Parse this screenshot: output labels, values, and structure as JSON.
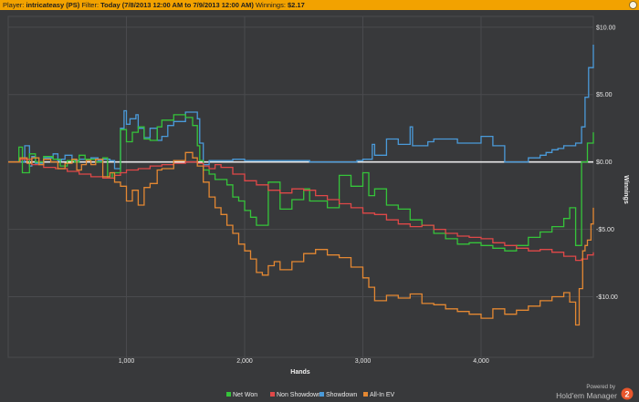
{
  "header": {
    "player_label": "Player:",
    "player_value": "intricateasy (PS)",
    "filter_label": "Filter:",
    "filter_value": "Today (7/8/2013 12:00 AM to 7/9/2013 12:00 AM)",
    "winnings_label": "Winnings:",
    "winnings_value": "$2.17"
  },
  "branding": {
    "line1": "Powered by",
    "line2": "Hold'em Manager",
    "badge": "2"
  },
  "colors": {
    "background": "#38393b",
    "grid": "#4a4b4e",
    "zero_line": "#e8e8e8",
    "header_bg": "#f2a200"
  },
  "chart_data": {
    "type": "line",
    "xlabel": "Hands",
    "ylabel": "Winnings",
    "xlim": [
      0,
      4950
    ],
    "ylim": [
      -14.5,
      10.8
    ],
    "x_ticks": [
      1000,
      2000,
      3000,
      4000
    ],
    "x_tick_labels": [
      "1,000",
      "2,000",
      "3,000",
      "4,000"
    ],
    "y_ticks": [
      10,
      5,
      0,
      -5,
      -10
    ],
    "y_tick_labels": [
      "$10.00",
      "$5.00",
      "$0.00",
      "-$5.00",
      "-$10.00"
    ],
    "grid": true,
    "legend_position": "bottom",
    "series": [
      {
        "name": "Showdown",
        "color": "#4a9ad9",
        "x": [
          0,
          100,
          140,
          180,
          200,
          230,
          300,
          380,
          420,
          450,
          480,
          540,
          600,
          700,
          760,
          800,
          860,
          880,
          900,
          950,
          980,
          1000,
          1030,
          1080,
          1100,
          1150,
          1200,
          1260,
          1300,
          1350,
          1400,
          1500,
          1560,
          1600,
          1620,
          1650,
          1700,
          1750,
          1800,
          1900,
          2000,
          2100,
          2200,
          2350,
          2400,
          2550,
          2700,
          2750,
          2900,
          2950,
          3000,
          3080,
          3100,
          3200,
          3300,
          3400,
          3420,
          3550,
          3600,
          3800,
          4000,
          4100,
          4200,
          4300,
          4400,
          4500,
          4550,
          4600,
          4650,
          4700,
          4800,
          4850,
          4880,
          4910,
          4950
        ],
        "y": [
          0,
          0,
          1.2,
          -0.3,
          0.4,
          -0.1,
          0.3,
          0.6,
          0.1,
          0.2,
          0.5,
          0.1,
          0.2,
          0.3,
          0.1,
          0.2,
          0.1,
          0.1,
          -0.5,
          2.5,
          3.8,
          2.8,
          3.2,
          3.5,
          2.5,
          1.8,
          2.5,
          1.6,
          1.9,
          2.7,
          3.0,
          3.7,
          3.7,
          3.2,
          1.4,
          -0.2,
          0.1,
          0.1,
          0.1,
          0.2,
          0.1,
          0.1,
          0.1,
          0.1,
          0.1,
          0,
          0,
          0,
          0,
          0.1,
          0.2,
          1.3,
          0.5,
          1.7,
          1.3,
          2.6,
          1.2,
          1.5,
          1.7,
          1.4,
          1.9,
          1.2,
          0,
          0,
          0.3,
          0.5,
          0.7,
          0.9,
          1.0,
          1.2,
          1.4,
          2.6,
          4.8,
          7.0,
          8.7
        ]
      },
      {
        "name": "Net Won",
        "color": "#35c43a",
        "x": [
          0,
          60,
          90,
          120,
          180,
          230,
          300,
          380,
          440,
          500,
          560,
          600,
          650,
          700,
          740,
          800,
          840,
          880,
          950,
          1000,
          1050,
          1100,
          1150,
          1200,
          1260,
          1300,
          1400,
          1500,
          1560,
          1600,
          1620,
          1650,
          1700,
          1750,
          1800,
          1850,
          1900,
          1950,
          2000,
          2050,
          2100,
          2200,
          2300,
          2400,
          2500,
          2550,
          2700,
          2800,
          2900,
          3000,
          3050,
          3100,
          3200,
          3300,
          3400,
          3500,
          3600,
          3700,
          3800,
          3900,
          4000,
          4100,
          4200,
          4300,
          4400,
          4500,
          4600,
          4700,
          4750,
          4800,
          4850,
          4900,
          4950
        ],
        "y": [
          0,
          0,
          1.1,
          -0.8,
          0.6,
          0,
          0.4,
          0.2,
          -0.3,
          0.1,
          0,
          0.5,
          0.2,
          0.2,
          0,
          0.3,
          -1.2,
          -0.8,
          2.4,
          1.5,
          2.2,
          2.6,
          1.7,
          1.6,
          2.6,
          3.1,
          3.5,
          3.3,
          2.7,
          1.2,
          0.1,
          -0.6,
          -0.9,
          -1.3,
          -1.3,
          -1.7,
          -2.6,
          -2.9,
          -3.6,
          -4.1,
          -4.7,
          -1.5,
          -3.5,
          -2.8,
          -2.0,
          -2.9,
          -3.4,
          -1.0,
          -1.8,
          -0.8,
          -2.5,
          -2.0,
          -3.2,
          -3.5,
          -4.3,
          -4.7,
          -5.3,
          -5.7,
          -6.1,
          -6.0,
          -6.2,
          -6.4,
          -6.6,
          -6.2,
          -5.6,
          -5.2,
          -4.8,
          -4.2,
          -3.4,
          -6.2,
          0,
          1.4,
          2.2
        ]
      },
      {
        "name": "Non Showdown",
        "color": "#e04848",
        "x": [
          0,
          60,
          100,
          200,
          300,
          400,
          500,
          600,
          700,
          800,
          900,
          950,
          1000,
          1100,
          1200,
          1300,
          1400,
          1500,
          1600,
          1650,
          1700,
          1750,
          1800,
          1900,
          2000,
          2100,
          2200,
          2300,
          2400,
          2500,
          2600,
          2700,
          2800,
          2900,
          3000,
          3100,
          3200,
          3300,
          3400,
          3500,
          3600,
          3700,
          3800,
          3900,
          4000,
          4100,
          4200,
          4300,
          4400,
          4500,
          4600,
          4700,
          4800,
          4850,
          4900,
          4950
        ],
        "y": [
          0,
          0,
          0.2,
          -0.2,
          -0.4,
          -0.5,
          -0.7,
          -0.9,
          -1.1,
          -1.2,
          -1.0,
          -0.8,
          -0.6,
          -0.5,
          -0.3,
          -0.2,
          -0.1,
          0,
          -0.1,
          -0.3,
          -0.5,
          -0.2,
          -0.4,
          -0.9,
          -1.4,
          -1.7,
          -2.1,
          -2.3,
          -2.0,
          -2.1,
          -2.5,
          -2.8,
          -3.1,
          -3.4,
          -3.8,
          -3.9,
          -4.3,
          -4.6,
          -4.8,
          -4.7,
          -5.0,
          -5.3,
          -5.5,
          -5.6,
          -5.7,
          -6.0,
          -6.2,
          -6.4,
          -6.6,
          -6.5,
          -6.7,
          -7.0,
          -7.3,
          -7.2,
          -6.9,
          -6.7
        ]
      },
      {
        "name": "All-In EV",
        "color": "#e48832",
        "x": [
          0,
          60,
          100,
          160,
          200,
          260,
          300,
          360,
          420,
          480,
          540,
          580,
          620,
          660,
          700,
          740,
          800,
          860,
          900,
          950,
          1000,
          1050,
          1100,
          1150,
          1200,
          1260,
          1300,
          1400,
          1500,
          1560,
          1600,
          1650,
          1700,
          1750,
          1800,
          1850,
          1900,
          1950,
          2000,
          2050,
          2100,
          2150,
          2200,
          2250,
          2300,
          2400,
          2500,
          2600,
          2700,
          2800,
          2900,
          3000,
          3050,
          3100,
          3200,
          3300,
          3400,
          3500,
          3600,
          3700,
          3800,
          3900,
          4000,
          4100,
          4200,
          4300,
          4400,
          4500,
          4600,
          4700,
          4750,
          4800,
          4830,
          4860,
          4880,
          4900,
          4930,
          4950
        ],
        "y": [
          0,
          0,
          0.3,
          -0.1,
          0.3,
          -0.2,
          0.2,
          0,
          -0.5,
          -0.1,
          0.2,
          -0.6,
          -0.2,
          0.1,
          -0.2,
          0.2,
          -1.1,
          -0.8,
          -1.5,
          -1.8,
          -2.9,
          -2.1,
          -3.2,
          -1.9,
          -1.6,
          -0.6,
          -0.5,
          0.1,
          0.7,
          0.3,
          -0.3,
          -1.5,
          -2.6,
          -3.4,
          -3.9,
          -4.7,
          -5.3,
          -6.1,
          -6.6,
          -7.2,
          -8.2,
          -8.4,
          -7.7,
          -7.4,
          -8.0,
          -7.4,
          -6.8,
          -6.5,
          -6.9,
          -7.1,
          -7.8,
          -8.6,
          -9.3,
          -10.3,
          -9.9,
          -10.1,
          -9.8,
          -10.5,
          -10.6,
          -10.9,
          -11.1,
          -11.3,
          -11.6,
          -10.9,
          -11.3,
          -11.0,
          -10.7,
          -10.3,
          -10.0,
          -9.7,
          -10.4,
          -12.1,
          -9.4,
          -6.6,
          -6.2,
          -5.8,
          -4.6,
          -3.4
        ]
      }
    ]
  }
}
